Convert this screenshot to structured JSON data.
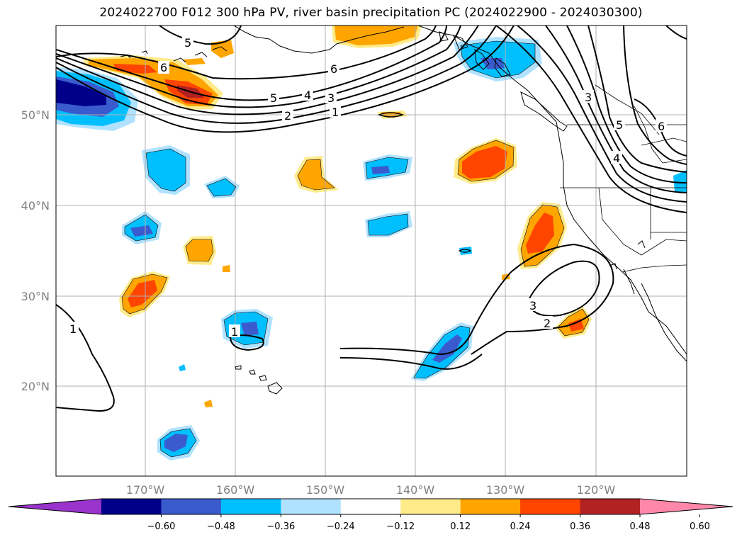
{
  "title": "2024022700 F012 300 hPa PV, river basin precipitation PC (2024022900 - 2024030300)",
  "map": {
    "lat_labels": [
      "50°N",
      "40°N",
      "30°N",
      "20°N"
    ],
    "lon_labels": [
      "170°W",
      "160°W",
      "150°W",
      "140°W",
      "130°W",
      "120°W"
    ]
  },
  "colorbar": {
    "colors": [
      "#9933cc",
      "#00008b",
      "#3a5bcd",
      "#00bfff",
      "#b0e2ff",
      "#ffffff",
      "#ffeb8a",
      "#ffa500",
      "#ff4500",
      "#b22222",
      "#ff88aa"
    ],
    "ticks": [
      "−0.60",
      "−0.48",
      "−0.36",
      "−0.24",
      "−0.12",
      "0.12",
      "0.24",
      "0.36",
      "0.48",
      "0.60"
    ]
  },
  "contour_labels": [
    "5",
    "6",
    "6",
    "5",
    "4",
    "3",
    "2",
    "1",
    "3",
    "5",
    "6",
    "4",
    "3",
    "2",
    "1",
    "1"
  ]
}
